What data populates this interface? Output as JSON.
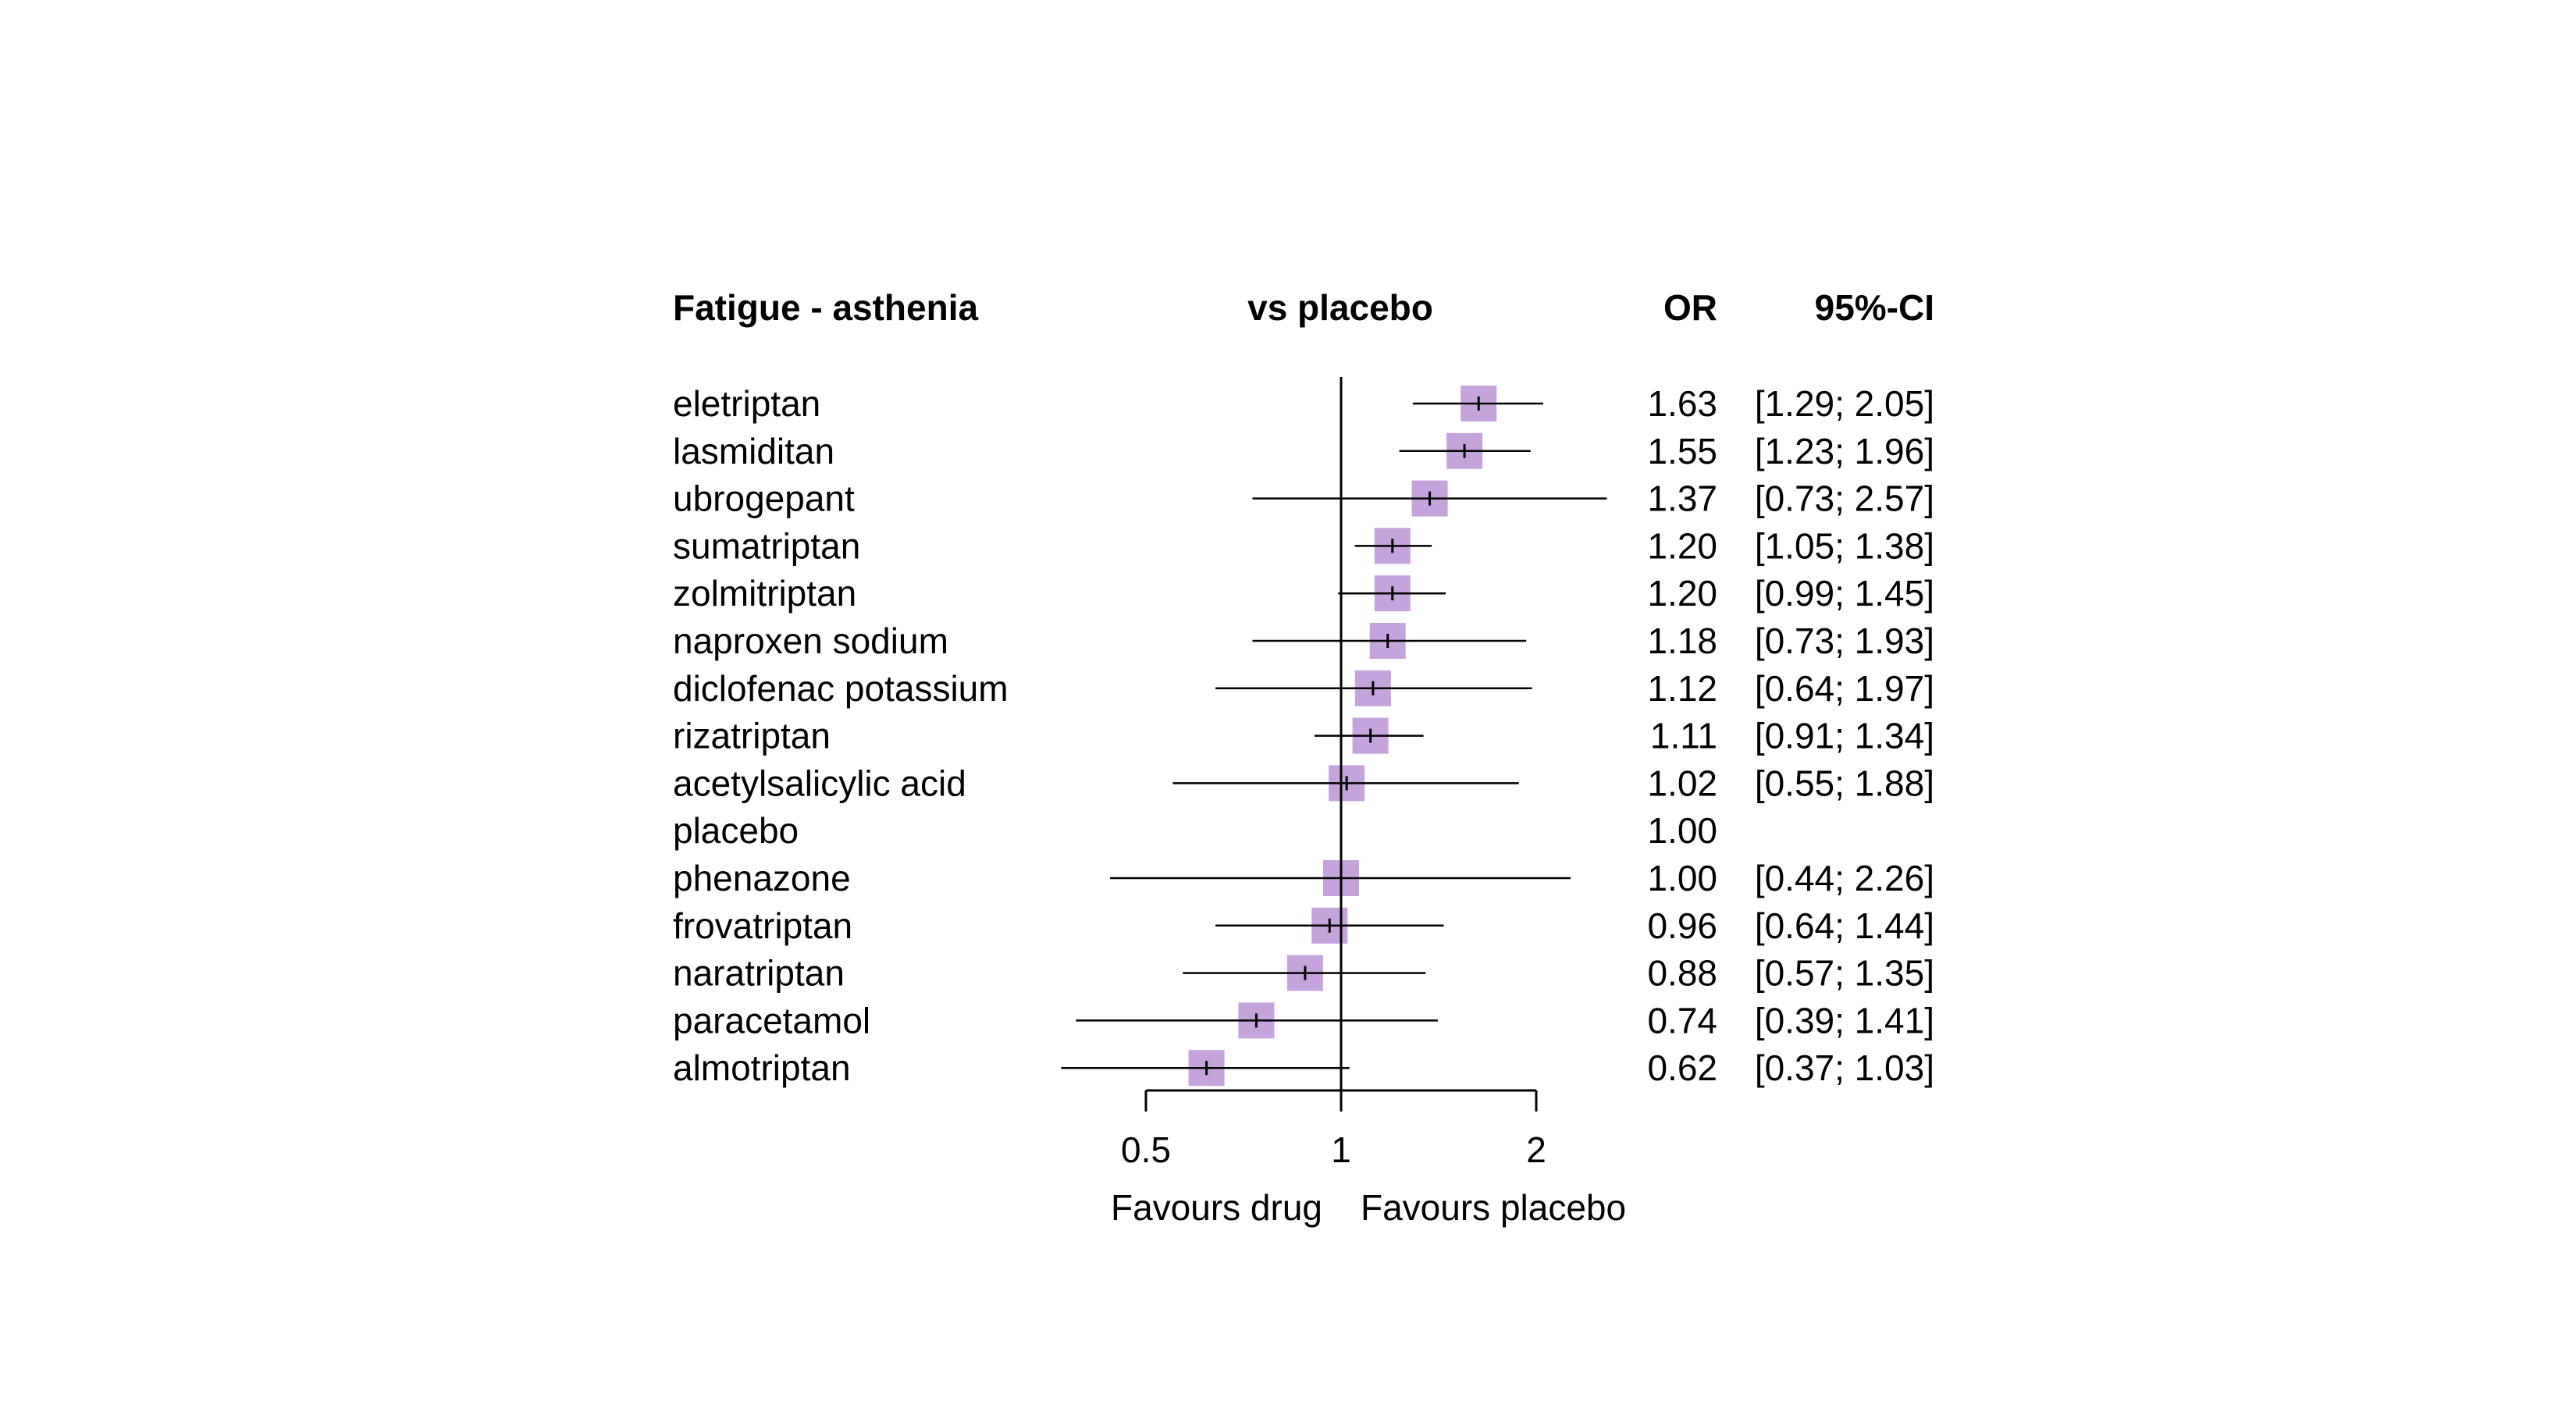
{
  "chart_data": {
    "type": "forest",
    "title": "Fatigue - asthenia",
    "column_headers": {
      "comparison": "vs placebo",
      "estimate": "OR",
      "ci": "95%-CI"
    },
    "x_scale": "log",
    "x_ticks": [
      0.5,
      1,
      2
    ],
    "x_tick_labels": [
      "0.5",
      "1",
      "2"
    ],
    "reference_value": 1,
    "favours_left": "Favours drug",
    "favours_right": "Favours placebo",
    "box_color": "#c5a3dc",
    "rows": [
      {
        "label": "eletriptan",
        "or": 1.63,
        "lower": 1.29,
        "upper": 2.05,
        "or_text": "1.63",
        "ci_text": "[1.29; 2.05]"
      },
      {
        "label": "lasmiditan",
        "or": 1.55,
        "lower": 1.23,
        "upper": 1.96,
        "or_text": "1.55",
        "ci_text": "[1.23; 1.96]"
      },
      {
        "label": "ubrogepant",
        "or": 1.37,
        "lower": 0.73,
        "upper": 2.57,
        "or_text": "1.37",
        "ci_text": "[0.73; 2.57]"
      },
      {
        "label": "sumatriptan",
        "or": 1.2,
        "lower": 1.05,
        "upper": 1.38,
        "or_text": "1.20",
        "ci_text": "[1.05; 1.38]"
      },
      {
        "label": "zolmitriptan",
        "or": 1.2,
        "lower": 0.99,
        "upper": 1.45,
        "or_text": "1.20",
        "ci_text": "[0.99; 1.45]"
      },
      {
        "label": "naproxen sodium",
        "or": 1.18,
        "lower": 0.73,
        "upper": 1.93,
        "or_text": "1.18",
        "ci_text": "[0.73; 1.93]"
      },
      {
        "label": "diclofenac potassium",
        "or": 1.12,
        "lower": 0.64,
        "upper": 1.97,
        "or_text": "1.12",
        "ci_text": "[0.64; 1.97]"
      },
      {
        "label": "rizatriptan",
        "or": 1.11,
        "lower": 0.91,
        "upper": 1.34,
        "or_text": "1.11",
        "ci_text": "[0.91; 1.34]"
      },
      {
        "label": "acetylsalicylic acid",
        "or": 1.02,
        "lower": 0.55,
        "upper": 1.88,
        "or_text": "1.02",
        "ci_text": "[0.55; 1.88]"
      },
      {
        "label": "placebo",
        "or": 1.0,
        "lower": null,
        "upper": null,
        "or_text": "1.00",
        "ci_text": ""
      },
      {
        "label": "phenazone",
        "or": 1.0,
        "lower": 0.44,
        "upper": 2.26,
        "or_text": "1.00",
        "ci_text": "[0.44; 2.26]"
      },
      {
        "label": "frovatriptan",
        "or": 0.96,
        "lower": 0.64,
        "upper": 1.44,
        "or_text": "0.96",
        "ci_text": "[0.64; 1.44]"
      },
      {
        "label": "naratriptan",
        "or": 0.88,
        "lower": 0.57,
        "upper": 1.35,
        "or_text": "0.88",
        "ci_text": "[0.57; 1.35]"
      },
      {
        "label": "paracetamol",
        "or": 0.74,
        "lower": 0.39,
        "upper": 1.41,
        "or_text": "0.74",
        "ci_text": "[0.39; 1.41]"
      },
      {
        "label": "almotriptan",
        "or": 0.62,
        "lower": 0.37,
        "upper": 1.03,
        "or_text": "0.62",
        "ci_text": "[0.37; 1.03]"
      }
    ]
  }
}
